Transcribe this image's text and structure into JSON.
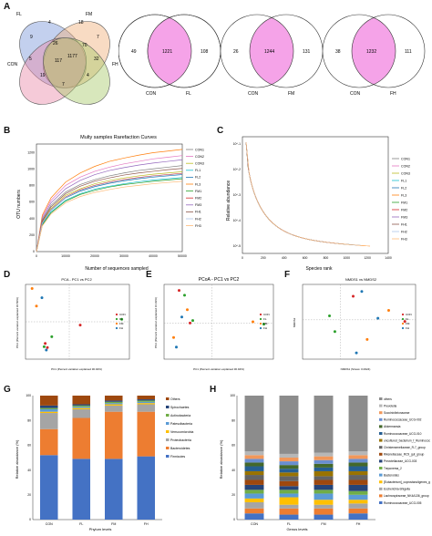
{
  "panel_labels": {
    "A": "A",
    "B": "B",
    "C": "C",
    "D": "D",
    "E": "E",
    "F": "F",
    "G": "G",
    "H": "H"
  },
  "venn4": {
    "sets": [
      "FL",
      "FM",
      "CON",
      "FH"
    ],
    "values": {
      "a": "4",
      "b": "18",
      "c": "9",
      "d": "7",
      "e": "26",
      "f": "70",
      "g": "5",
      "h": "117",
      "i": "1177",
      "j": "32",
      "k": "19",
      "l": "4",
      "m": "7"
    }
  },
  "venn2": [
    {
      "left": "49",
      "center": "1221",
      "right": "108",
      "label_left": "CON",
      "label_right": "FL"
    },
    {
      "left": "26",
      "center": "1244",
      "right": "131",
      "label_left": "CON",
      "label_right": "FM"
    },
    {
      "left": "38",
      "center": "1232",
      "right": "111",
      "label_left": "CON",
      "label_right": "FH"
    }
  ],
  "colors": {
    "venn_overlap": "#f5a3e8",
    "bar_blue": "#4472c4",
    "bar_orange": "#ed7d31",
    "bar_grey": "#a5a5a5",
    "bar_yellow": "#ffc000"
  },
  "chart_data": [
    {
      "type": "line",
      "title": "Multy samples Rarefaction Curves",
      "xlabel": "Number of sequences sampled",
      "ylabel": "OTU numbers",
      "xlim": [
        0,
        50000
      ],
      "ylim": [
        0,
        1300
      ],
      "x_ticks": [
        "0",
        "10000",
        "20000",
        "30000",
        "40000",
        "50000"
      ],
      "y_ticks": [
        "0",
        "200",
        "400",
        "600",
        "800",
        "1000",
        "1200"
      ],
      "x": [
        0,
        2000,
        5000,
        10000,
        15000,
        20000,
        25000,
        30000,
        35000,
        40000,
        45000,
        50000
      ],
      "series": [
        {
          "name": "CON1",
          "color": "#7f7f7f",
          "values": [
            0,
            380,
            560,
            720,
            810,
            870,
            915,
            950,
            980,
            1000,
            1020,
            1040
          ]
        },
        {
          "name": "CON2",
          "color": "#e377c2",
          "values": [
            0,
            420,
            620,
            800,
            900,
            970,
            1020,
            1060,
            1090,
            1120,
            1140,
            1160
          ]
        },
        {
          "name": "CON3",
          "color": "#bcbd22",
          "values": [
            0,
            360,
            520,
            680,
            760,
            820,
            860,
            890,
            915,
            935,
            950,
            965
          ]
        },
        {
          "name": "FL1",
          "color": "#17becf",
          "values": [
            0,
            330,
            480,
            620,
            700,
            755,
            790,
            820,
            845,
            865,
            880,
            895
          ]
        },
        {
          "name": "FL2",
          "color": "#1f77b4",
          "values": [
            0,
            340,
            500,
            650,
            730,
            785,
            825,
            855,
            880,
            900,
            915,
            930
          ]
        },
        {
          "name": "FL3",
          "color": "#ff7f0e",
          "values": [
            0,
            440,
            650,
            840,
            950,
            1030,
            1090,
            1130,
            1165,
            1195,
            1215,
            1235
          ]
        },
        {
          "name": "FM1",
          "color": "#2ca02c",
          "values": [
            0,
            320,
            470,
            610,
            690,
            740,
            780,
            810,
            830,
            850,
            865,
            880
          ]
        },
        {
          "name": "FM2",
          "color": "#d62728",
          "values": [
            0,
            350,
            510,
            660,
            745,
            800,
            840,
            870,
            895,
            915,
            930,
            945
          ]
        },
        {
          "name": "FM3",
          "color": "#9467bd",
          "values": [
            0,
            400,
            590,
            760,
            860,
            930,
            980,
            1015,
            1045,
            1070,
            1090,
            1110
          ]
        },
        {
          "name": "FH1",
          "color": "#8c564b",
          "values": [
            0,
            370,
            540,
            700,
            790,
            850,
            890,
            925,
            950,
            970,
            990,
            1005
          ]
        },
        {
          "name": "FH2",
          "color": "#aec7e8",
          "values": [
            0,
            345,
            505,
            655,
            740,
            795,
            835,
            865,
            890,
            910,
            925,
            940
          ]
        },
        {
          "name": "FH3",
          "color": "#ffbb78",
          "values": [
            0,
            310,
            455,
            590,
            665,
            715,
            750,
            780,
            800,
            820,
            835,
            850
          ]
        }
      ]
    },
    {
      "type": "line",
      "ylabel": "Relative abundance",
      "xlabel": "Species rank",
      "x_ticks": [
        "0",
        "200",
        "400",
        "600",
        "800",
        "1000",
        "1200",
        "1400"
      ],
      "y_ticks": [
        "10^-1",
        "10^-2",
        "10^-3",
        "10^-4",
        "10^-5"
      ],
      "series": [
        {
          "name": "CON1"
        },
        {
          "name": "CON2"
        },
        {
          "name": "CON3"
        },
        {
          "name": "FL1"
        },
        {
          "name": "FL2"
        },
        {
          "name": "FL3"
        },
        {
          "name": "FM1"
        },
        {
          "name": "FM2"
        },
        {
          "name": "FM3"
        },
        {
          "name": "FH1"
        },
        {
          "name": "FH2"
        },
        {
          "name": "FH3"
        }
      ]
    },
    {
      "type": "scatter",
      "title": "PCA - PC1 vs PC2",
      "xlabel": "PC1 (Percent variation explained 30.94%)",
      "ylabel": "PC2 (Percent variation explained 18.50%)",
      "legend": [
        "CON",
        "FL",
        "FM",
        "FH"
      ],
      "points": [
        {
          "group": "FM",
          "x": -0.34,
          "y": 0.4
        },
        {
          "group": "FM",
          "x": -0.3,
          "y": 0.19
        },
        {
          "group": "FH",
          "x": -0.25,
          "y": 0.29
        },
        {
          "group": "CON",
          "x": -0.22,
          "y": -0.26
        },
        {
          "group": "CON",
          "x": -0.2,
          "y": -0.31
        },
        {
          "group": "FL",
          "x": -0.23,
          "y": -0.3
        },
        {
          "group": "FH",
          "x": -0.21,
          "y": -0.34
        },
        {
          "group": "FL",
          "x": -0.16,
          "y": -0.18
        },
        {
          "group": "CON",
          "x": 0.1,
          "y": -0.04
        },
        {
          "group": "FL",
          "x": 0.48,
          "y": 0.03
        }
      ]
    },
    {
      "type": "scatter",
      "title": "PCoA - PC1 vs PC2",
      "xlabel": "PC1 (Percent variation explained 30.94%)",
      "ylabel": "PC2 (Percent variation explained 16.93%)",
      "legend": [
        "CON",
        "FL",
        "FM",
        "FH"
      ],
      "points": [
        {
          "group": "CON",
          "x": -0.24,
          "y": 0.27
        },
        {
          "group": "FL",
          "x": -0.2,
          "y": 0.23
        },
        {
          "group": "FM",
          "x": -0.18,
          "y": 0.11
        },
        {
          "group": "FH",
          "x": -0.22,
          "y": 0.05
        },
        {
          "group": "FL",
          "x": -0.14,
          "y": 0.02
        },
        {
          "group": "CON",
          "x": -0.16,
          "y": 0.0
        },
        {
          "group": "FM",
          "x": -0.28,
          "y": -0.12
        },
        {
          "group": "FH",
          "x": -0.26,
          "y": -0.2
        },
        {
          "group": "FM",
          "x": 0.3,
          "y": 0.01
        },
        {
          "group": "FL",
          "x": 0.38,
          "y": -0.01
        }
      ]
    },
    {
      "type": "scatter",
      "title": "NMDS1 vs NMDS2",
      "xlabel": "NMDS1 (Stress: 0.0624)",
      "ylabel": "NMDS2",
      "legend": [
        "CON",
        "FL",
        "FM",
        "FH"
      ],
      "points": [
        {
          "group": "FH",
          "x": 0.2,
          "y": 0.36
        },
        {
          "group": "CON",
          "x": 0.12,
          "y": 0.3
        },
        {
          "group": "FM",
          "x": 0.45,
          "y": 0.12
        },
        {
          "group": "FL",
          "x": -0.1,
          "y": 0.05
        },
        {
          "group": "FH",
          "x": 0.35,
          "y": 0.02
        },
        {
          "group": "CON",
          "x": 0.6,
          "y": -0.02
        },
        {
          "group": "FL",
          "x": -0.05,
          "y": -0.15
        },
        {
          "group": "FM",
          "x": 0.25,
          "y": -0.25
        },
        {
          "group": "FH",
          "x": 0.15,
          "y": -0.42
        }
      ]
    },
    {
      "type": "bar",
      "stacked": true,
      "xlabel": "Phylum levels",
      "ylabel": "Relative abundance (%)",
      "categories": [
        "CON",
        "FL",
        "FM",
        "FH"
      ],
      "y_ticks": [
        "0",
        "20",
        "40",
        "60",
        "80",
        "100"
      ],
      "series": [
        {
          "name": "Firmicutes",
          "color": "#4472c4",
          "values": [
            52,
            49,
            49,
            51
          ]
        },
        {
          "name": "Bacteroidetes",
          "color": "#ed7d31",
          "values": [
            21,
            33,
            38,
            36
          ]
        },
        {
          "name": "Proteobacteria",
          "color": "#a5a5a5",
          "values": [
            13,
            7,
            5,
            6
          ]
        },
        {
          "name": "Verrucomicrobia",
          "color": "#ffc000",
          "values": [
            1,
            1,
            1,
            1
          ]
        },
        {
          "name": "Patescibacteria",
          "color": "#5b9bd5",
          "values": [
            2,
            1,
            1,
            1
          ]
        },
        {
          "name": "Actinobacteria",
          "color": "#70ad47",
          "values": [
            1,
            1,
            1,
            1
          ]
        },
        {
          "name": "Spirochaetes",
          "color": "#264478",
          "values": [
            2,
            1,
            1,
            1
          ]
        },
        {
          "name": "Others",
          "color": "#9e480e",
          "values": [
            8,
            7,
            4,
            3
          ]
        }
      ]
    },
    {
      "type": "bar",
      "stacked": true,
      "xlabel": "Genus levels",
      "ylabel": "Relative abundance (%)",
      "categories": [
        "CON",
        "FL",
        "FM",
        "FH"
      ],
      "y_ticks": [
        "0",
        "20",
        "40",
        "60",
        "80",
        "100"
      ],
      "series": [
        {
          "name": "Ruminococcaceae_UCG-005",
          "color": "#4472c4",
          "values": [
            5,
            4,
            4,
            5
          ]
        },
        {
          "name": "Lachnospiraceae_NK4A136_group",
          "color": "#ed7d31",
          "values": [
            4,
            5,
            5,
            4
          ]
        },
        {
          "name": "Escherichia-Shigella",
          "color": "#a5a5a5",
          "values": [
            5,
            3,
            3,
            4
          ]
        },
        {
          "name": "[Eubacterium]_coprostanoligenes_group",
          "color": "#ffc000",
          "values": [
            3,
            6,
            4,
            3
          ]
        },
        {
          "name": "Bacteroides",
          "color": "#5b9bd5",
          "values": [
            4,
            3,
            5,
            4
          ]
        },
        {
          "name": "Treponema_2",
          "color": "#70ad47",
          "values": [
            3,
            3,
            3,
            3
          ]
        },
        {
          "name": "Prevotellaceae_UCG-003",
          "color": "#264478",
          "values": [
            4,
            3,
            4,
            5
          ]
        },
        {
          "name": "Rikenellaceae_RC9_gut_group",
          "color": "#9e480e",
          "values": [
            4,
            4,
            4,
            4
          ]
        },
        {
          "name": "Christensenellaceae_R-7_group",
          "color": "#636363",
          "values": [
            4,
            4,
            3,
            4
          ]
        },
        {
          "name": "uncultured_bacterium_f_Ruminococcaceae",
          "color": "#997300",
          "values": [
            3,
            3,
            4,
            3
          ]
        },
        {
          "name": "Ruminococcaceae_UCG-010",
          "color": "#255e91",
          "values": [
            4,
            3,
            3,
            4
          ]
        },
        {
          "name": "Akkermansia",
          "color": "#43682b",
          "values": [
            3,
            3,
            3,
            3
          ]
        },
        {
          "name": "Ruminococcaceae_UCG-002",
          "color": "#698ed0",
          "values": [
            3,
            3,
            3,
            3
          ]
        },
        {
          "name": "Succinivibrionaceae",
          "color": "#f1975a",
          "values": [
            3,
            3,
            3,
            3
          ]
        },
        {
          "name": "Prevotella",
          "color": "#b7b7b7",
          "values": [
            3,
            3,
            3,
            3
          ]
        },
        {
          "name": "others",
          "color": "#8c8c8c",
          "values": [
            45,
            47,
            46,
            45
          ]
        }
      ]
    }
  ]
}
